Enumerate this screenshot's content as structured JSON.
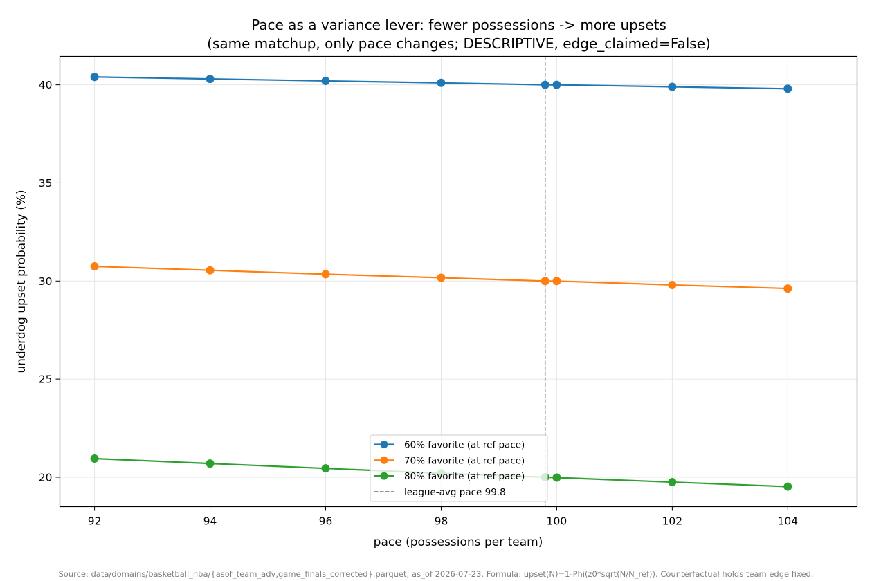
{
  "chart_data": {
    "type": "line",
    "title_line1": "Pace as a variance lever: fewer possessions -> more upsets",
    "title_line2": "(same matchup, only pace changes; DESCRIPTIVE, edge_claimed=False)",
    "xlabel": "pace (possessions per team)",
    "ylabel": "underdog upset probability (%)",
    "xlim": [
      91.4,
      105.2
    ],
    "ylim": [
      18.5,
      41.45
    ],
    "x_ticks": [
      92,
      94,
      96,
      98,
      100,
      102,
      104
    ],
    "y_ticks": [
      20,
      25,
      30,
      35,
      40
    ],
    "grid": true,
    "legend_position": "lower center",
    "x": [
      92,
      94,
      96,
      98,
      99.8,
      100,
      102,
      104
    ],
    "series": [
      {
        "name": "60% favorite (at ref pace)",
        "color": "#1f77b4",
        "values": [
          40.4,
          40.3,
          40.2,
          40.1,
          40.0,
          40.0,
          39.9,
          39.8
        ]
      },
      {
        "name": "70% favorite (at ref pace)",
        "color": "#ff7f0e",
        "values": [
          30.75,
          30.55,
          30.35,
          30.17,
          30.0,
          30.0,
          29.8,
          29.62
        ]
      },
      {
        "name": "80% favorite (at ref pace)",
        "color": "#2ca02c",
        "values": [
          20.95,
          20.7,
          20.45,
          20.2,
          20.0,
          19.98,
          19.75,
          19.52
        ]
      }
    ],
    "reference_line": {
      "x": 99.8,
      "label": "league-avg pace 99.8",
      "color": "#808080"
    },
    "footnote": "Source: data/domains/basketball_nba/{asof_team_adv,game_finals_corrected}.parquet; as_of 2026-07-23. Formula: upset(N)=1-Phi(z0*sqrt(N/N_ref)). Counterfactual holds team edge fixed."
  }
}
